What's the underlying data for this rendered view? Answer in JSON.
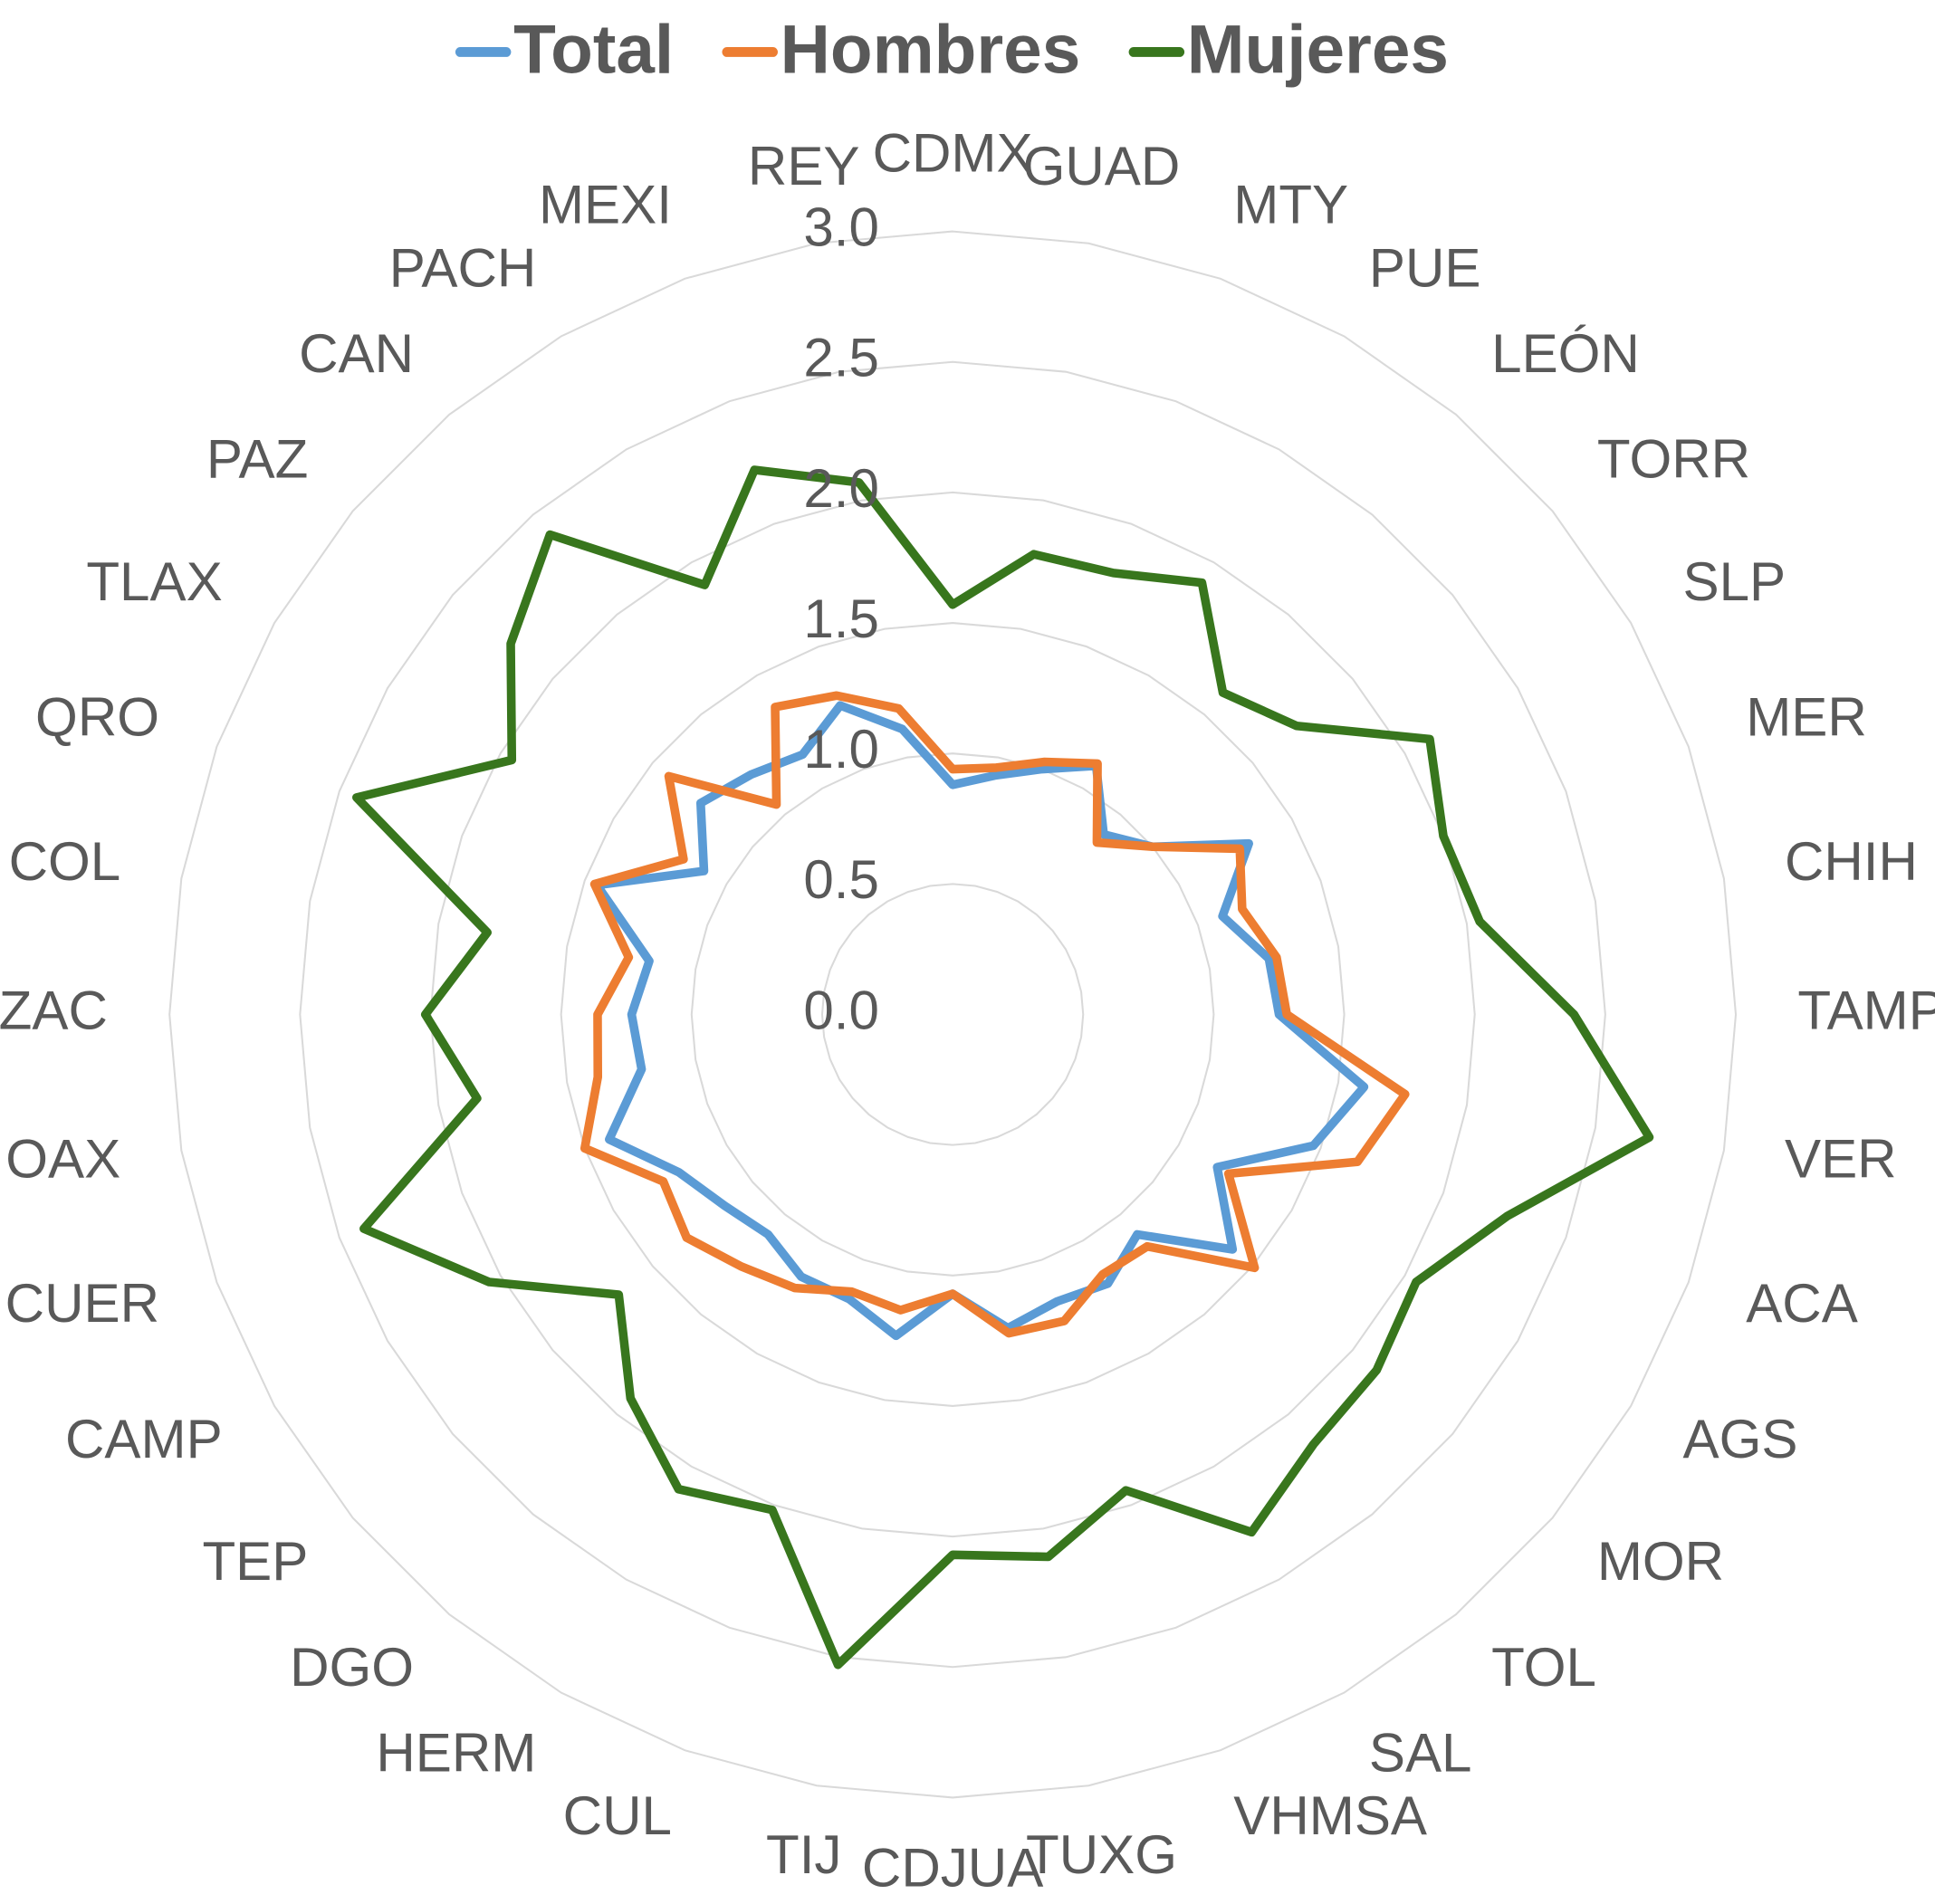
{
  "chart_data": {
    "type": "radar",
    "categories": [
      "CDMX",
      "GUAD",
      "MTY",
      "PUE",
      "LEÓN",
      "TORR",
      "SLP",
      "MER",
      "CHIH",
      "TAMP",
      "VER",
      "ACA",
      "AGS",
      "MOR",
      "TOL",
      "SAL",
      "VHMSA",
      "TUXG",
      "CDJUA",
      "TIJ",
      "CUL",
      "HERM",
      "DGO",
      "TEP",
      "CAMP",
      "CUER",
      "OAX",
      "ZAC",
      "COL",
      "QRO",
      "TLAX",
      "PAZ",
      "CAN",
      "PACH",
      "MEXI",
      "REY"
    ],
    "series": [
      {
        "name": "Total",
        "color": "#5b9bd5",
        "values": [
          0.88,
          0.93,
          1.0,
          1.1,
          0.9,
          1.0,
          1.31,
          1.1,
          1.23,
          1.25,
          1.6,
          1.47,
          1.17,
          1.4,
          1.1,
          1.19,
          1.17,
          1.22,
          1.07,
          1.25,
          1.16,
          1.16,
          1.1,
          1.14,
          1.21,
          1.4,
          1.21,
          1.23,
          1.18,
          1.45,
          1.1,
          1.26,
          1.2,
          1.15,
          1.26,
          1.11
        ]
      },
      {
        "name": "Hombres",
        "color": "#ed7d31",
        "values": [
          0.94,
          0.96,
          1.03,
          1.11,
          0.86,
          1.0,
          1.27,
          1.18,
          1.26,
          1.28,
          1.76,
          1.65,
          1.22,
          1.51,
          1.16,
          1.15,
          1.25,
          1.24,
          1.07,
          1.15,
          1.13,
          1.21,
          1.26,
          1.33,
          1.28,
          1.5,
          1.38,
          1.36,
          1.26,
          1.46,
          1.19,
          1.42,
          1.05,
          1.36,
          1.3,
          1.19
        ]
      },
      {
        "name": "Mujeres",
        "color": "#38761d",
        "values": [
          1.57,
          1.79,
          1.8,
          1.91,
          1.61,
          1.72,
          2.11,
          2.0,
          2.05,
          2.38,
          2.71,
          2.26,
          2.05,
          2.12,
          2.15,
          2.29,
          1.94,
          2.11,
          2.07,
          2.53,
          2.02,
          2.1,
          1.92,
          1.67,
          2.05,
          2.4,
          1.85,
          2.02,
          1.81,
          2.43,
          1.95,
          2.21,
          2.4,
          1.9,
          2.22,
          2.07
        ]
      }
    ],
    "ylim": [
      0,
      3
    ],
    "yticks": [
      {
        "value": 0,
        "label": "0.0"
      },
      0.5,
      {
        "value": 1,
        "label": "1.0"
      },
      1.5,
      {
        "value": 2,
        "label": "2.0"
      },
      2.5,
      {
        "value": 3,
        "label": "3.0"
      }
    ],
    "grid": true,
    "legend": "top"
  }
}
